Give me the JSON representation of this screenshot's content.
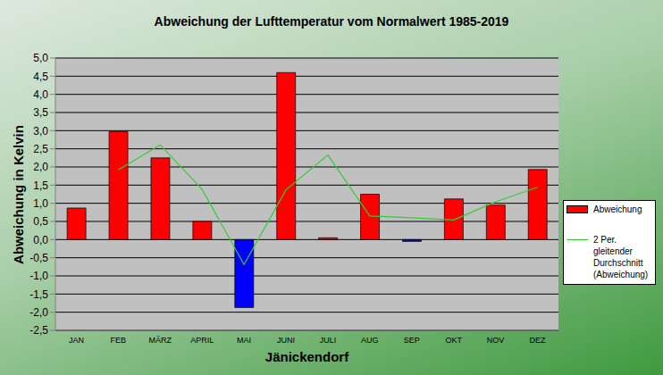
{
  "chart_data": {
    "type": "bar",
    "title": "Abweichung der Lufttemperatur vom Normalwert 1985-2019",
    "x_label": "Jänickendorf",
    "y_label": "Abweichung in Kelvin",
    "categories": [
      "JAN",
      "FEB",
      "MÄRZ",
      "APRIL",
      "MAI",
      "JUNI",
      "JULI",
      "AUG",
      "SEP",
      "OKT",
      "NOV",
      "DEZ"
    ],
    "series": [
      {
        "name": "Abweichung",
        "type": "bar",
        "color": "#ff0000",
        "colors": [
          "#ff0000",
          "#ff0000",
          "#ff0000",
          "#ff0000",
          "#0000ff",
          "#ff0000",
          "#ff0000",
          "#ff0000",
          "#0000ff",
          "#ff0000",
          "#ff0000",
          "#ff0000"
        ],
        "values": [
          0.87,
          2.97,
          2.25,
          0.5,
          -1.87,
          4.6,
          0.05,
          1.25,
          -0.05,
          1.12,
          0.95,
          1.93
        ]
      },
      {
        "name": "2 Per. gleitender Durchschnitt (Abweichung)",
        "type": "line",
        "color": "#33cc33",
        "values": [
          null,
          1.92,
          2.61,
          1.38,
          -0.69,
          1.37,
          2.33,
          0.65,
          0.6,
          0.54,
          1.04,
          1.44
        ]
      }
    ],
    "ylim": [
      -2.5,
      5
    ],
    "yticks": [
      {
        "value": -2.5,
        "label": "-2,5"
      },
      {
        "value": -2,
        "label": "-2,0"
      },
      {
        "value": -1.5,
        "label": "-1,5"
      },
      {
        "value": -1,
        "label": "-1,0"
      },
      {
        "value": -0.5,
        "label": "-0,5"
      },
      {
        "value": 0,
        "label": "0,0"
      },
      {
        "value": 0.5,
        "label": "0,5"
      },
      {
        "value": 1,
        "label": "1,0"
      },
      {
        "value": 1.5,
        "label": "1,5"
      },
      {
        "value": 2,
        "label": "2,0"
      },
      {
        "value": 2.5,
        "label": "2,5"
      },
      {
        "value": 3,
        "label": "3,0"
      },
      {
        "value": 3.5,
        "label": "3,5"
      },
      {
        "value": 4,
        "label": "4,0"
      },
      {
        "value": 4.5,
        "label": "4,5"
      },
      {
        "value": 5,
        "label": "5,0"
      }
    ],
    "grid": true,
    "legend": "right"
  }
}
